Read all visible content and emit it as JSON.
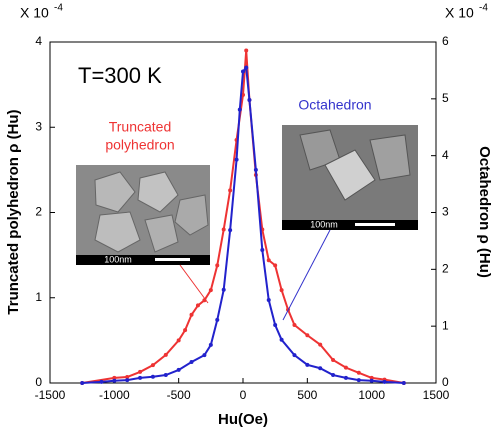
{
  "chart_data": {
    "type": "line",
    "x_label": "Hu(Oe)",
    "y_label": "Truncated polyhedron  ρ (Hu)",
    "y2_label": "Octahedron  ρ (Hu)",
    "y_multiplier": {
      "base": "X 10",
      "exp": "-4"
    },
    "y2_multiplier": {
      "base": "X 10",
      "exp": "-4"
    },
    "annotations": {
      "temperature": "T=300 K",
      "truncated_1": "Truncated",
      "truncated_2": "polyhedron",
      "octahedron": "Octahedron",
      "scale_1": "100nm",
      "scale_2": "100nm"
    },
    "xlim": [
      -1500,
      1500
    ],
    "xticks": [
      -1500,
      -1000,
      -500,
      0,
      500,
      1000,
      1500
    ],
    "ylim": [
      0,
      4
    ],
    "yticks": [
      0,
      1,
      2,
      3,
      4
    ],
    "y2lim": [
      0,
      6
    ],
    "y2ticks": [
      0,
      1,
      2,
      3,
      4,
      5,
      6
    ],
    "series": [
      {
        "color": "#ee3333",
        "axis": "y",
        "x": [
          -1250,
          -1000,
          -900,
          -800,
          -700,
          -600,
          -500,
          -450,
          -400,
          -350,
          -300,
          -250,
          -200,
          -150,
          -100,
          -50,
          0,
          25,
          50,
          100,
          150,
          200,
          250,
          300,
          350,
          400,
          500,
          600,
          700,
          800,
          900,
          1000,
          1100,
          1250
        ],
        "values": [
          0,
          0.06,
          0.07,
          0.13,
          0.21,
          0.33,
          0.5,
          0.62,
          0.8,
          0.91,
          0.97,
          1.09,
          1.38,
          1.8,
          2.26,
          2.85,
          3.38,
          3.9,
          3.32,
          2.44,
          1.8,
          1.44,
          1.38,
          1.09,
          0.86,
          0.68,
          0.56,
          0.45,
          0.27,
          0.18,
          0.12,
          0.06,
          0.04,
          0
        ]
      },
      {
        "color": "#2222cc",
        "axis": "y2",
        "x": [
          -1250,
          -1100,
          -1000,
          -900,
          -800,
          -700,
          -600,
          -500,
          -400,
          -300,
          -250,
          -200,
          -150,
          -100,
          -50,
          -25,
          0,
          25,
          50,
          100,
          150,
          200,
          250,
          300,
          400,
          500,
          600,
          700,
          800,
          900,
          1000,
          1100,
          1250
        ],
        "values": [
          0,
          0.02,
          0.04,
          0.05,
          0.09,
          0.11,
          0.14,
          0.23,
          0.37,
          0.49,
          0.67,
          1.11,
          1.64,
          2.69,
          3.93,
          4.81,
          5.48,
          5.55,
          4.98,
          3.75,
          2.34,
          1.46,
          1.02,
          0.76,
          0.49,
          0.32,
          0.26,
          0.14,
          0.09,
          0.05,
          0.04,
          0.02,
          0
        ]
      }
    ]
  }
}
